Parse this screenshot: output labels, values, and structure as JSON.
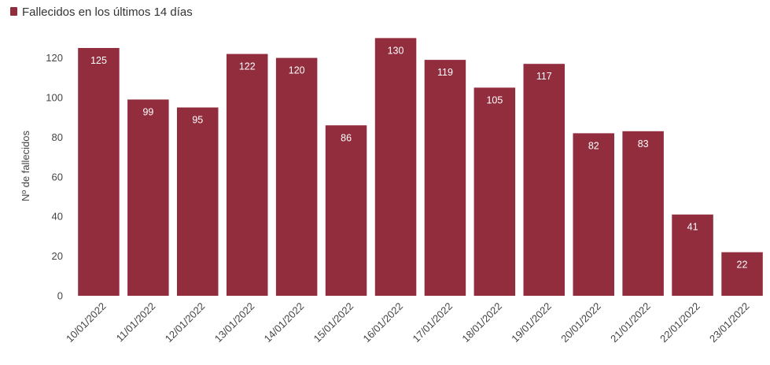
{
  "chart_data": {
    "type": "bar",
    "legend": {
      "label": "Fallecidos en los últimos 14 días",
      "position": "top-left"
    },
    "ylabel": "Nº de fallecidos",
    "xlabel": "",
    "ylim": [
      0,
      130
    ],
    "yticks": [
      0,
      20,
      40,
      60,
      80,
      100,
      120
    ],
    "grid": false,
    "colors": {
      "bar": "#922D3E"
    },
    "categories": [
      "10/01/2022",
      "11/01/2022",
      "12/01/2022",
      "13/01/2022",
      "14/01/2022",
      "15/01/2022",
      "16/01/2022",
      "17/01/2022",
      "18/01/2022",
      "19/01/2022",
      "20/01/2022",
      "21/01/2022",
      "22/01/2022",
      "23/01/2022"
    ],
    "series": [
      {
        "name": "Fallecidos en los últimos 14 días",
        "values": [
          125,
          99,
          95,
          122,
          120,
          86,
          130,
          119,
          105,
          117,
          82,
          83,
          41,
          22
        ]
      }
    ]
  }
}
